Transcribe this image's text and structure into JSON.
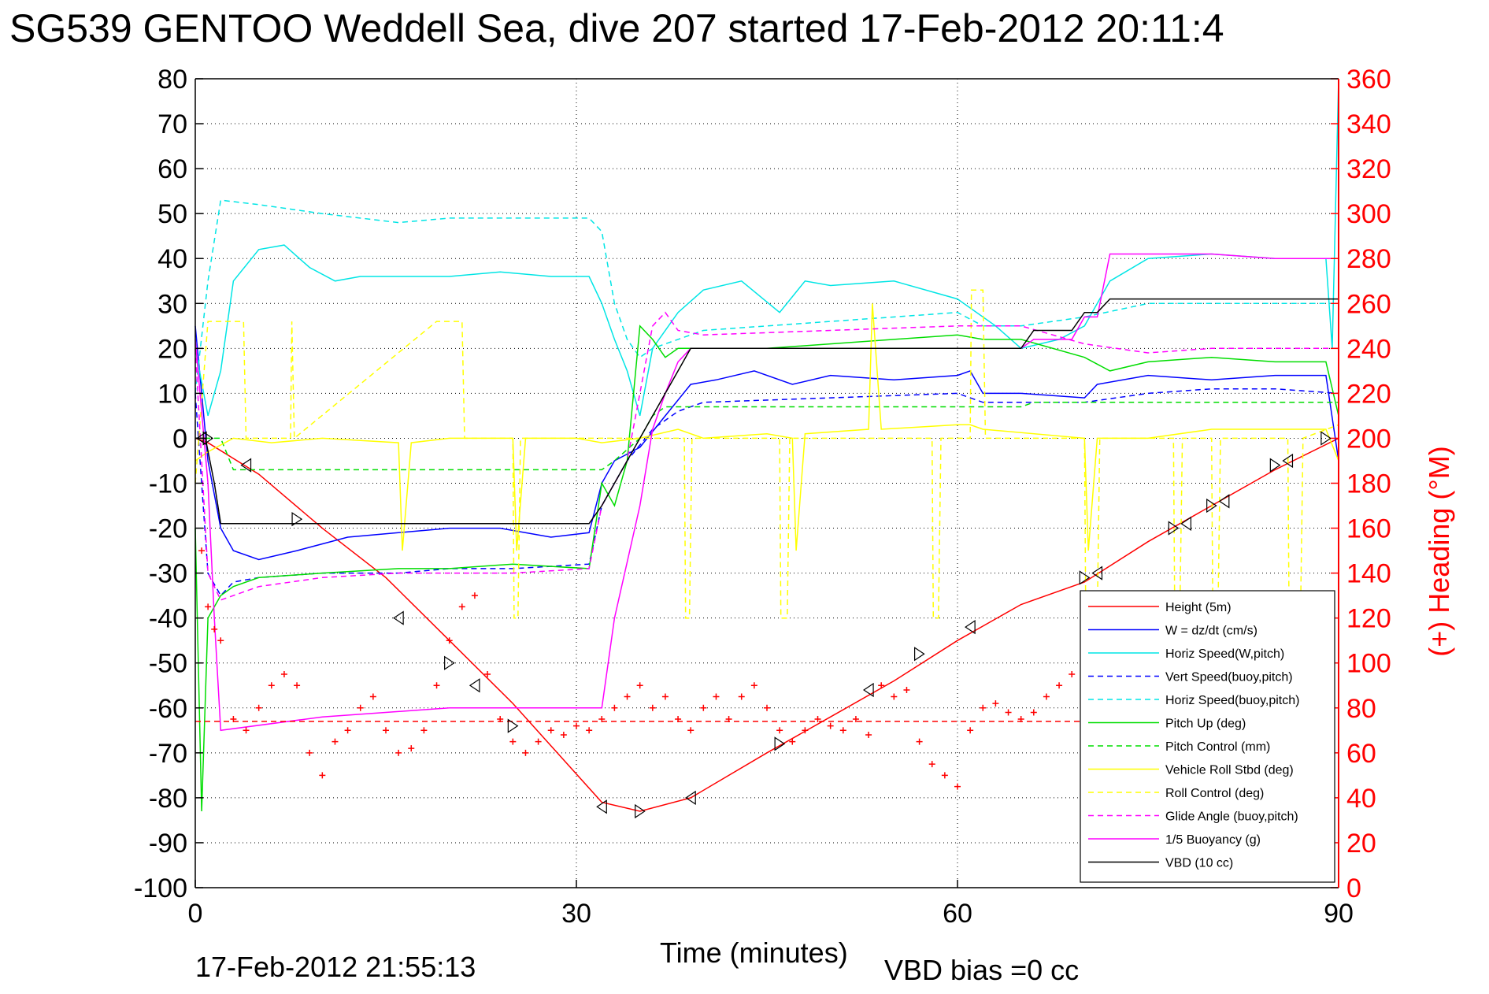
{
  "chart_data": {
    "type": "line",
    "title": "SG539 GENTOO Weddell Sea, dive 207 started 17-Feb-2012 20:11:4",
    "xlabel": "Time (minutes)",
    "ylabel_right": "(+) Heading (°M)",
    "xlim": [
      0,
      90
    ],
    "ylim_left": [
      -100,
      80
    ],
    "ylim_right": [
      0,
      360
    ],
    "x_ticks": [
      "0",
      "30",
      "60",
      "90"
    ],
    "y_ticks_left": [
      "80",
      "70",
      "60",
      "50",
      "40",
      "30",
      "20",
      "10",
      "0",
      "-10",
      "-20",
      "-30",
      "-40",
      "-50",
      "-60",
      "-70",
      "-80",
      "-90",
      "-100"
    ],
    "y_ticks_right": [
      "360",
      "340",
      "320",
      "300",
      "280",
      "260",
      "240",
      "220",
      "200",
      "180",
      "160",
      "140",
      "120",
      "100",
      "80",
      "60",
      "40",
      "20",
      "0"
    ],
    "grid": true,
    "legend_position": "bottom-right",
    "footer_date": "17-Feb-2012 21:55:13",
    "footer_bias": "VBD bias =0 cc",
    "series": [
      {
        "name": "Height (5m)",
        "color": "#ff0000",
        "dash": "solid",
        "x": [
          0,
          1,
          5,
          10,
          15,
          20,
          25,
          32,
          35,
          39,
          45,
          50,
          55,
          60,
          65,
          70,
          75,
          80,
          85,
          90
        ],
        "y": [
          0,
          -1,
          -8,
          -20,
          -31,
          -45,
          -59,
          -81,
          -83,
          -80,
          -70,
          -62,
          -54,
          -45,
          -37,
          -32,
          -23,
          -15,
          -7,
          0
        ]
      },
      {
        "name": "W = dz/dt (cm/s)",
        "color": "#0000ff",
        "dash": "solid",
        "x": [
          0,
          0.5,
          1,
          2,
          3,
          5,
          8,
          12,
          16,
          20,
          24,
          28,
          31,
          32,
          33,
          35,
          37,
          39,
          41,
          44,
          47,
          50,
          55,
          60,
          61,
          62,
          65,
          70,
          71,
          75,
          80,
          85,
          89,
          90
        ],
        "y": [
          25,
          10,
          -5,
          -20,
          -25,
          -27,
          -25,
          -22,
          -21,
          -20,
          -20,
          -22,
          -21,
          -10,
          -5,
          -2,
          5,
          12,
          13,
          15,
          12,
          14,
          13,
          14,
          15,
          10,
          10,
          9,
          12,
          14,
          13,
          14,
          14,
          -5
        ]
      },
      {
        "name": "Horiz Speed(W,pitch)",
        "color": "#00e5e5",
        "dash": "solid",
        "x": [
          0,
          1,
          2,
          3,
          5,
          7,
          9,
          11,
          13,
          16,
          20,
          24,
          28,
          31,
          32,
          33,
          34,
          35,
          36,
          38,
          40,
          43,
          46,
          48,
          50,
          55,
          60,
          63,
          65,
          68,
          70,
          72,
          75,
          80,
          85,
          89,
          89.5,
          90
        ],
        "y": [
          20,
          5,
          15,
          35,
          42,
          43,
          38,
          35,
          36,
          36,
          36,
          37,
          36,
          36,
          30,
          22,
          15,
          5,
          20,
          28,
          33,
          35,
          28,
          35,
          34,
          35,
          31,
          25,
          20,
          22,
          25,
          35,
          40,
          41,
          40,
          40,
          20,
          80
        ]
      },
      {
        "name": "Vert Speed(buoy,pitch)",
        "color": "#0000ff",
        "dash": "dashed",
        "x": [
          0,
          1,
          2,
          3,
          5,
          10,
          16,
          20,
          25,
          31,
          32,
          34,
          36,
          38,
          40,
          50,
          60,
          62,
          65,
          70,
          75,
          80,
          85,
          90
        ],
        "y": [
          10,
          -30,
          -35,
          -32,
          -31,
          -30,
          -30,
          -29,
          -29,
          -28,
          -15,
          -5,
          2,
          6,
          8,
          9,
          10,
          8,
          8,
          8,
          10,
          11,
          11,
          10
        ]
      },
      {
        "name": "Horiz Speed(buoy,pitch)",
        "color": "#00e5e5",
        "dash": "dashed",
        "x": [
          0,
          1,
          2,
          5,
          10,
          16,
          20,
          25,
          31,
          32,
          33,
          34,
          35,
          36,
          38,
          40,
          50,
          60,
          62,
          65,
          70,
          75,
          80,
          85,
          90
        ],
        "y": [
          10,
          35,
          53,
          52,
          50,
          48,
          49,
          49,
          49,
          46,
          30,
          22,
          18,
          20,
          22,
          24,
          26,
          28,
          25,
          25,
          27,
          30,
          30,
          30,
          30
        ]
      },
      {
        "name": "Pitch Up (deg)",
        "color": "#00dd00",
        "dash": "solid",
        "x": [
          0,
          0.5,
          1,
          2,
          3,
          5,
          10,
          16,
          20,
          25,
          31,
          32,
          33,
          34,
          35,
          36,
          37,
          38,
          40,
          45,
          50,
          55,
          60,
          62,
          65,
          70,
          72,
          75,
          80,
          85,
          89,
          90
        ],
        "y": [
          -20,
          -83,
          -40,
          -35,
          -33,
          -31,
          -30,
          -29,
          -29,
          -28,
          -29,
          -10,
          -15,
          -5,
          25,
          22,
          18,
          20,
          20,
          20,
          21,
          22,
          23,
          22,
          22,
          18,
          15,
          17,
          18,
          17,
          17,
          5
        ]
      },
      {
        "name": "Pitch Control (mm)",
        "color": "#00dd00",
        "dash": "dashed",
        "x": [
          0,
          2,
          3,
          32,
          33,
          35,
          36,
          37,
          65,
          66,
          89,
          90
        ],
        "y": [
          0,
          0,
          -7,
          -7,
          -5,
          0,
          5,
          7,
          7,
          8,
          8,
          8
        ]
      },
      {
        "name": "Vehicle Roll Stbd (deg)",
        "color": "#ffff00",
        "dash": "solid",
        "x": [
          0,
          1,
          3,
          6,
          10,
          16,
          16.3,
          17,
          20,
          25,
          25.3,
          26,
          30,
          32,
          35,
          38,
          40,
          45,
          47,
          47.3,
          48,
          53,
          53.3,
          54,
          60,
          61,
          62,
          70,
          70.3,
          71,
          75,
          80,
          85,
          89,
          90
        ],
        "y": [
          -5,
          -3,
          0,
          -1,
          0,
          -1,
          -25,
          -1,
          0,
          0,
          -25,
          0,
          0,
          -1,
          0,
          2,
          0,
          1,
          0,
          -25,
          1,
          2,
          30,
          2,
          3,
          3,
          2,
          0,
          -25,
          0,
          0,
          2,
          2,
          2,
          -5
        ]
      },
      {
        "name": "Roll Control (deg)",
        "color": "#ffff00",
        "dash": "dashed",
        "x": [
          0,
          1,
          2,
          2.2,
          3.8,
          4,
          7.5,
          7.6,
          7.8,
          19,
          19.2,
          21,
          21.2,
          25,
          25.1,
          25.4,
          25.6,
          38.5,
          38.6,
          38.9,
          39.1,
          46,
          46.1,
          46.6,
          46.8,
          58,
          58.1,
          58.5,
          58.7,
          61,
          61.1,
          62,
          62.2,
          70,
          70.1,
          71,
          71.2,
          77,
          77.1,
          77.5,
          77.7,
          80,
          80.1,
          80.5,
          80.7,
          86,
          86.1,
          87,
          87.2,
          90
        ],
        "y": [
          -10,
          26,
          26,
          26,
          26,
          0,
          0,
          26,
          0,
          26,
          26,
          26,
          0,
          0,
          -40,
          -40,
          0,
          0,
          -40,
          -40,
          0,
          0,
          -40,
          -40,
          0,
          0,
          -40,
          -40,
          0,
          0,
          33,
          33,
          0,
          0,
          -40,
          -40,
          0,
          0,
          -40,
          -40,
          0,
          0,
          -40,
          -40,
          0,
          0,
          -40,
          -40,
          0,
          3
        ]
      },
      {
        "name": "Glide Angle (buoy,pitch)",
        "color": "#ff00ff",
        "dash": "dashed",
        "x": [
          0,
          1,
          2,
          5,
          10,
          16,
          20,
          25,
          31,
          32,
          34,
          36,
          37,
          38,
          40,
          50,
          60,
          65,
          70,
          75,
          80,
          85,
          90
        ],
        "y": [
          20,
          -30,
          -36,
          -33,
          -31,
          -30,
          -30,
          -30,
          -29,
          -15,
          -5,
          25,
          28,
          24,
          23,
          24,
          25,
          25,
          21,
          19,
          20,
          20,
          20
        ]
      },
      {
        "name": "1/5 Buoyancy (g)",
        "color": "#ff00ff",
        "dash": "solid",
        "x": [
          0,
          1,
          1.5,
          2,
          10,
          20,
          31,
          32,
          33,
          35,
          36,
          37,
          38,
          39,
          62,
          65,
          66,
          69,
          70,
          71,
          72,
          80,
          85,
          89,
          90
        ],
        "y": [
          22,
          -10,
          -40,
          -65,
          -62,
          -60,
          -60,
          -60,
          -40,
          -15,
          2,
          10,
          17,
          20,
          20,
          20,
          22,
          22,
          27,
          27,
          41,
          41,
          40,
          40,
          40
        ]
      },
      {
        "name": "VBD (10 cc)",
        "color": "#000000",
        "dash": "solid",
        "x": [
          0,
          0.8,
          1.5,
          2,
          31,
          32,
          33,
          35,
          37,
          38,
          39,
          65,
          66,
          69,
          70,
          71,
          72,
          89,
          90
        ],
        "y": [
          0,
          0,
          -10,
          -19,
          -19,
          -15,
          -10,
          0,
          10,
          15,
          20,
          20,
          24,
          24,
          28,
          28,
          31,
          31,
          31
        ]
      },
      {
        "name": "Heading",
        "color": "#ff0000",
        "dash": "dashed",
        "x": [
          0,
          90
        ],
        "y": [
          -63,
          -63
        ]
      }
    ],
    "heading_points_deg": {
      "x": [
        0.5,
        1,
        1.5,
        2,
        3,
        4,
        5,
        6,
        7,
        8,
        9,
        10,
        11,
        12,
        13,
        14,
        15,
        16,
        17,
        18,
        19,
        20,
        21,
        22,
        23,
        24,
        25,
        26,
        27,
        28,
        29,
        30,
        31,
        32,
        33,
        34,
        35,
        36,
        37,
        38,
        39,
        40,
        41,
        42,
        43,
        44,
        45,
        46,
        47,
        48,
        49,
        50,
        51,
        52,
        53,
        54,
        55,
        56,
        57,
        58,
        59,
        60,
        61,
        62,
        63,
        64,
        65,
        66,
        67,
        68,
        69,
        70,
        71
      ],
      "y": [
        150,
        125,
        115,
        110,
        75,
        70,
        80,
        90,
        95,
        90,
        60,
        50,
        65,
        70,
        80,
        85,
        70,
        60,
        62,
        70,
        90,
        110,
        125,
        130,
        95,
        75,
        65,
        60,
        65,
        70,
        68,
        72,
        70,
        75,
        80,
        85,
        90,
        80,
        85,
        75,
        70,
        80,
        85,
        75,
        85,
        90,
        80,
        70,
        65,
        70,
        75,
        72,
        70,
        75,
        68,
        90,
        85,
        88,
        65,
        55,
        50,
        45,
        70,
        80,
        82,
        78,
        75,
        78,
        85,
        90,
        95,
        100,
        115
      ]
    },
    "height_markers": {
      "x": [
        0.5,
        1,
        4,
        8,
        16,
        20,
        22,
        25,
        32,
        35,
        39,
        46,
        53,
        57,
        61,
        70,
        71,
        77,
        78,
        80,
        81,
        85,
        86,
        89
      ],
      "y": [
        0,
        0,
        -6,
        -18,
        -40,
        -50,
        -55,
        -64,
        -82,
        -83,
        -80,
        -68,
        -56,
        -48,
        -42,
        -31,
        -30,
        -20,
        -19,
        -15,
        -14,
        -6,
        -5,
        0
      ]
    }
  }
}
